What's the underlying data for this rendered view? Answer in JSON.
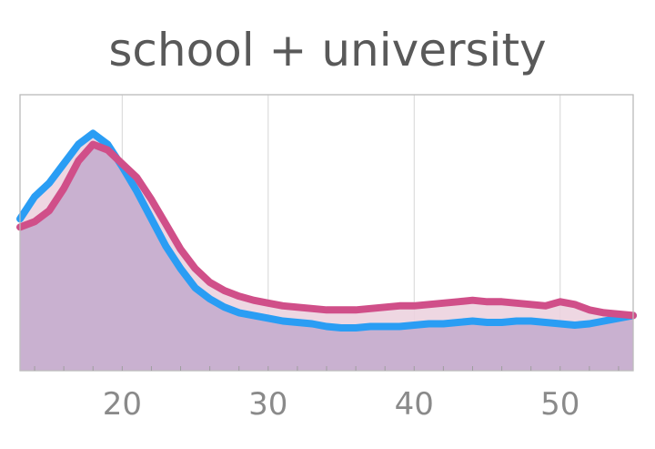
{
  "chart_data": {
    "type": "area",
    "title": "school + university",
    "xlabel": "",
    "ylabel": "",
    "xlim": [
      13,
      55
    ],
    "ylim": [
      0,
      1
    ],
    "xticks": [
      20,
      30,
      40,
      50
    ],
    "grid": "vertical",
    "legend": "none",
    "series": [
      {
        "color": "#2a9df4",
        "x": [
          13,
          14,
          15,
          16,
          17,
          18,
          19,
          20,
          21,
          22,
          23,
          24,
          25,
          26,
          27,
          28,
          29,
          30,
          31,
          32,
          33,
          34,
          35,
          36,
          37,
          38,
          39,
          40,
          41,
          42,
          43,
          44,
          45,
          46,
          47,
          48,
          49,
          50,
          51,
          52,
          53,
          54,
          55
        ],
        "values": [
          0.55,
          0.63,
          0.68,
          0.75,
          0.82,
          0.86,
          0.82,
          0.74,
          0.65,
          0.55,
          0.45,
          0.37,
          0.3,
          0.26,
          0.23,
          0.21,
          0.2,
          0.19,
          0.18,
          0.175,
          0.17,
          0.16,
          0.155,
          0.155,
          0.16,
          0.16,
          0.16,
          0.165,
          0.17,
          0.17,
          0.175,
          0.18,
          0.175,
          0.175,
          0.18,
          0.18,
          0.175,
          0.17,
          0.165,
          0.17,
          0.18,
          0.19,
          0.2
        ]
      },
      {
        "color": "#d04f89",
        "x": [
          13,
          14,
          15,
          16,
          17,
          18,
          19,
          20,
          21,
          22,
          23,
          24,
          25,
          26,
          27,
          28,
          29,
          30,
          31,
          32,
          33,
          34,
          35,
          36,
          37,
          38,
          39,
          40,
          41,
          42,
          43,
          44,
          45,
          46,
          47,
          48,
          49,
          50,
          51,
          52,
          53,
          54,
          55
        ],
        "values": [
          0.52,
          0.54,
          0.58,
          0.66,
          0.76,
          0.82,
          0.8,
          0.75,
          0.7,
          0.62,
          0.53,
          0.44,
          0.37,
          0.32,
          0.29,
          0.27,
          0.255,
          0.245,
          0.235,
          0.23,
          0.225,
          0.22,
          0.22,
          0.22,
          0.225,
          0.23,
          0.235,
          0.235,
          0.24,
          0.245,
          0.25,
          0.255,
          0.25,
          0.25,
          0.245,
          0.24,
          0.235,
          0.25,
          0.24,
          0.22,
          0.21,
          0.205,
          0.2
        ]
      }
    ]
  }
}
